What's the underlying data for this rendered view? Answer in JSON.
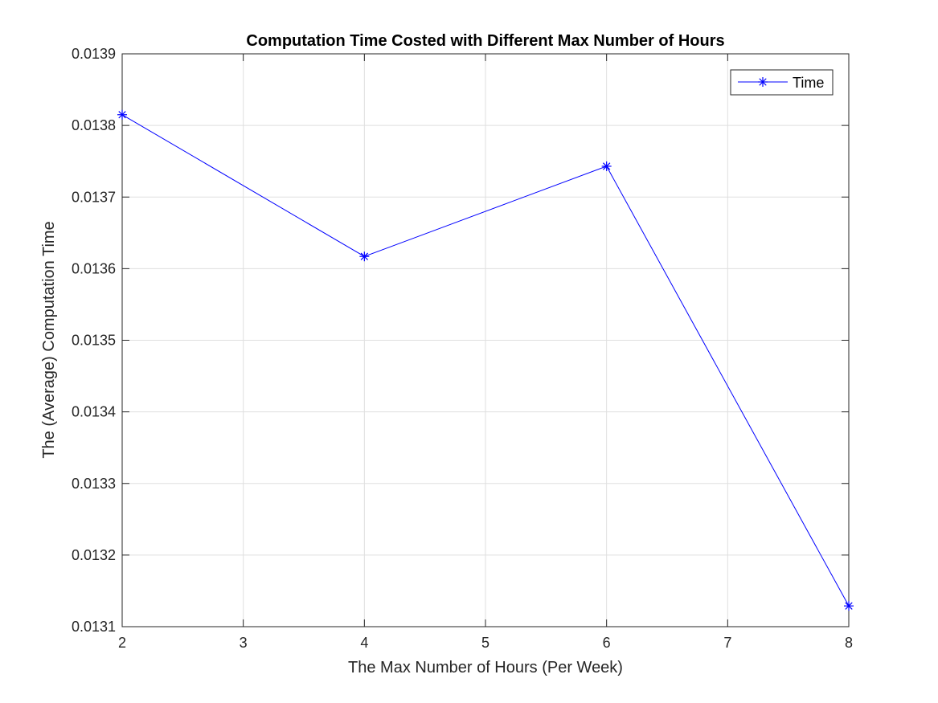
{
  "chart_data": {
    "type": "line",
    "title": "Computation Time Costed with Different Max Number of Hours",
    "xlabel": "The Max Number of Hours (Per Week)",
    "ylabel": "The (Average) Computation Time",
    "xlim": [
      2,
      8
    ],
    "ylim": [
      0.0131,
      0.0139
    ],
    "xticks": [
      "2",
      "3",
      "4",
      "5",
      "6",
      "7",
      "8"
    ],
    "yticks": [
      "0.0131",
      "0.0132",
      "0.0133",
      "0.0134",
      "0.0135",
      "0.0136",
      "0.0137",
      "0.0138",
      "0.0139"
    ],
    "grid": true,
    "legend_position": "top-right",
    "series": [
      {
        "name": "Time",
        "color": "#0000ff",
        "marker": "asterisk",
        "x": [
          2,
          4,
          6,
          8
        ],
        "y": [
          0.013815,
          0.013617,
          0.013743,
          0.013129
        ]
      }
    ]
  }
}
